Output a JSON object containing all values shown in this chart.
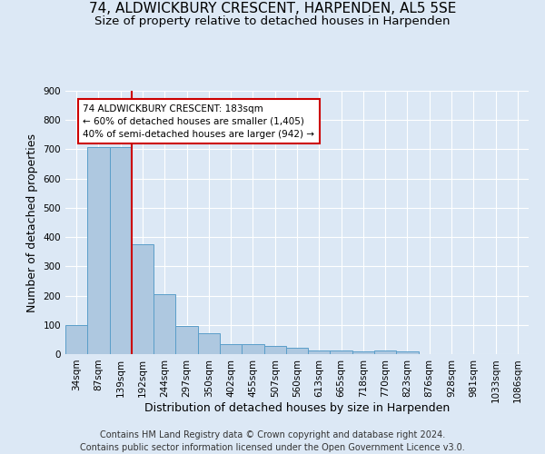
{
  "title1": "74, ALDWICKBURY CRESCENT, HARPENDEN, AL5 5SE",
  "title2": "Size of property relative to detached houses in Harpenden",
  "xlabel": "Distribution of detached houses by size in Harpenden",
  "ylabel": "Number of detached properties",
  "footnote": "Contains HM Land Registry data © Crown copyright and database right 2024.\nContains public sector information licensed under the Open Government Licence v3.0.",
  "bar_labels": [
    "34sqm",
    "87sqm",
    "139sqm",
    "192sqm",
    "244sqm",
    "297sqm",
    "350sqm",
    "402sqm",
    "455sqm",
    "507sqm",
    "560sqm",
    "613sqm",
    "665sqm",
    "718sqm",
    "770sqm",
    "823sqm",
    "876sqm",
    "928sqm",
    "981sqm",
    "1033sqm",
    "1086sqm"
  ],
  "bar_values": [
    100,
    707,
    707,
    375,
    205,
    97,
    72,
    35,
    35,
    28,
    22,
    12,
    12,
    10,
    12,
    10,
    0,
    0,
    0,
    0,
    0
  ],
  "bar_color": "#aec8e0",
  "bar_edge_color": "#5a9ec9",
  "vline_color": "#cc0000",
  "annotation_text": "74 ALDWICKBURY CRESCENT: 183sqm\n← 60% of detached houses are smaller (1,405)\n40% of semi-detached houses are larger (942) →",
  "annotation_box_color": "#ffffff",
  "annotation_box_edge_color": "#cc0000",
  "ylim_max": 900,
  "yticks": [
    0,
    100,
    200,
    300,
    400,
    500,
    600,
    700,
    800,
    900
  ],
  "background_color": "#dce8f5",
  "grid_color": "#ffffff",
  "title1_fontsize": 11,
  "title2_fontsize": 9.5,
  "xlabel_fontsize": 9,
  "ylabel_fontsize": 9,
  "tick_fontsize": 7.5,
  "annotation_fontsize": 7.5,
  "footnote_fontsize": 7
}
